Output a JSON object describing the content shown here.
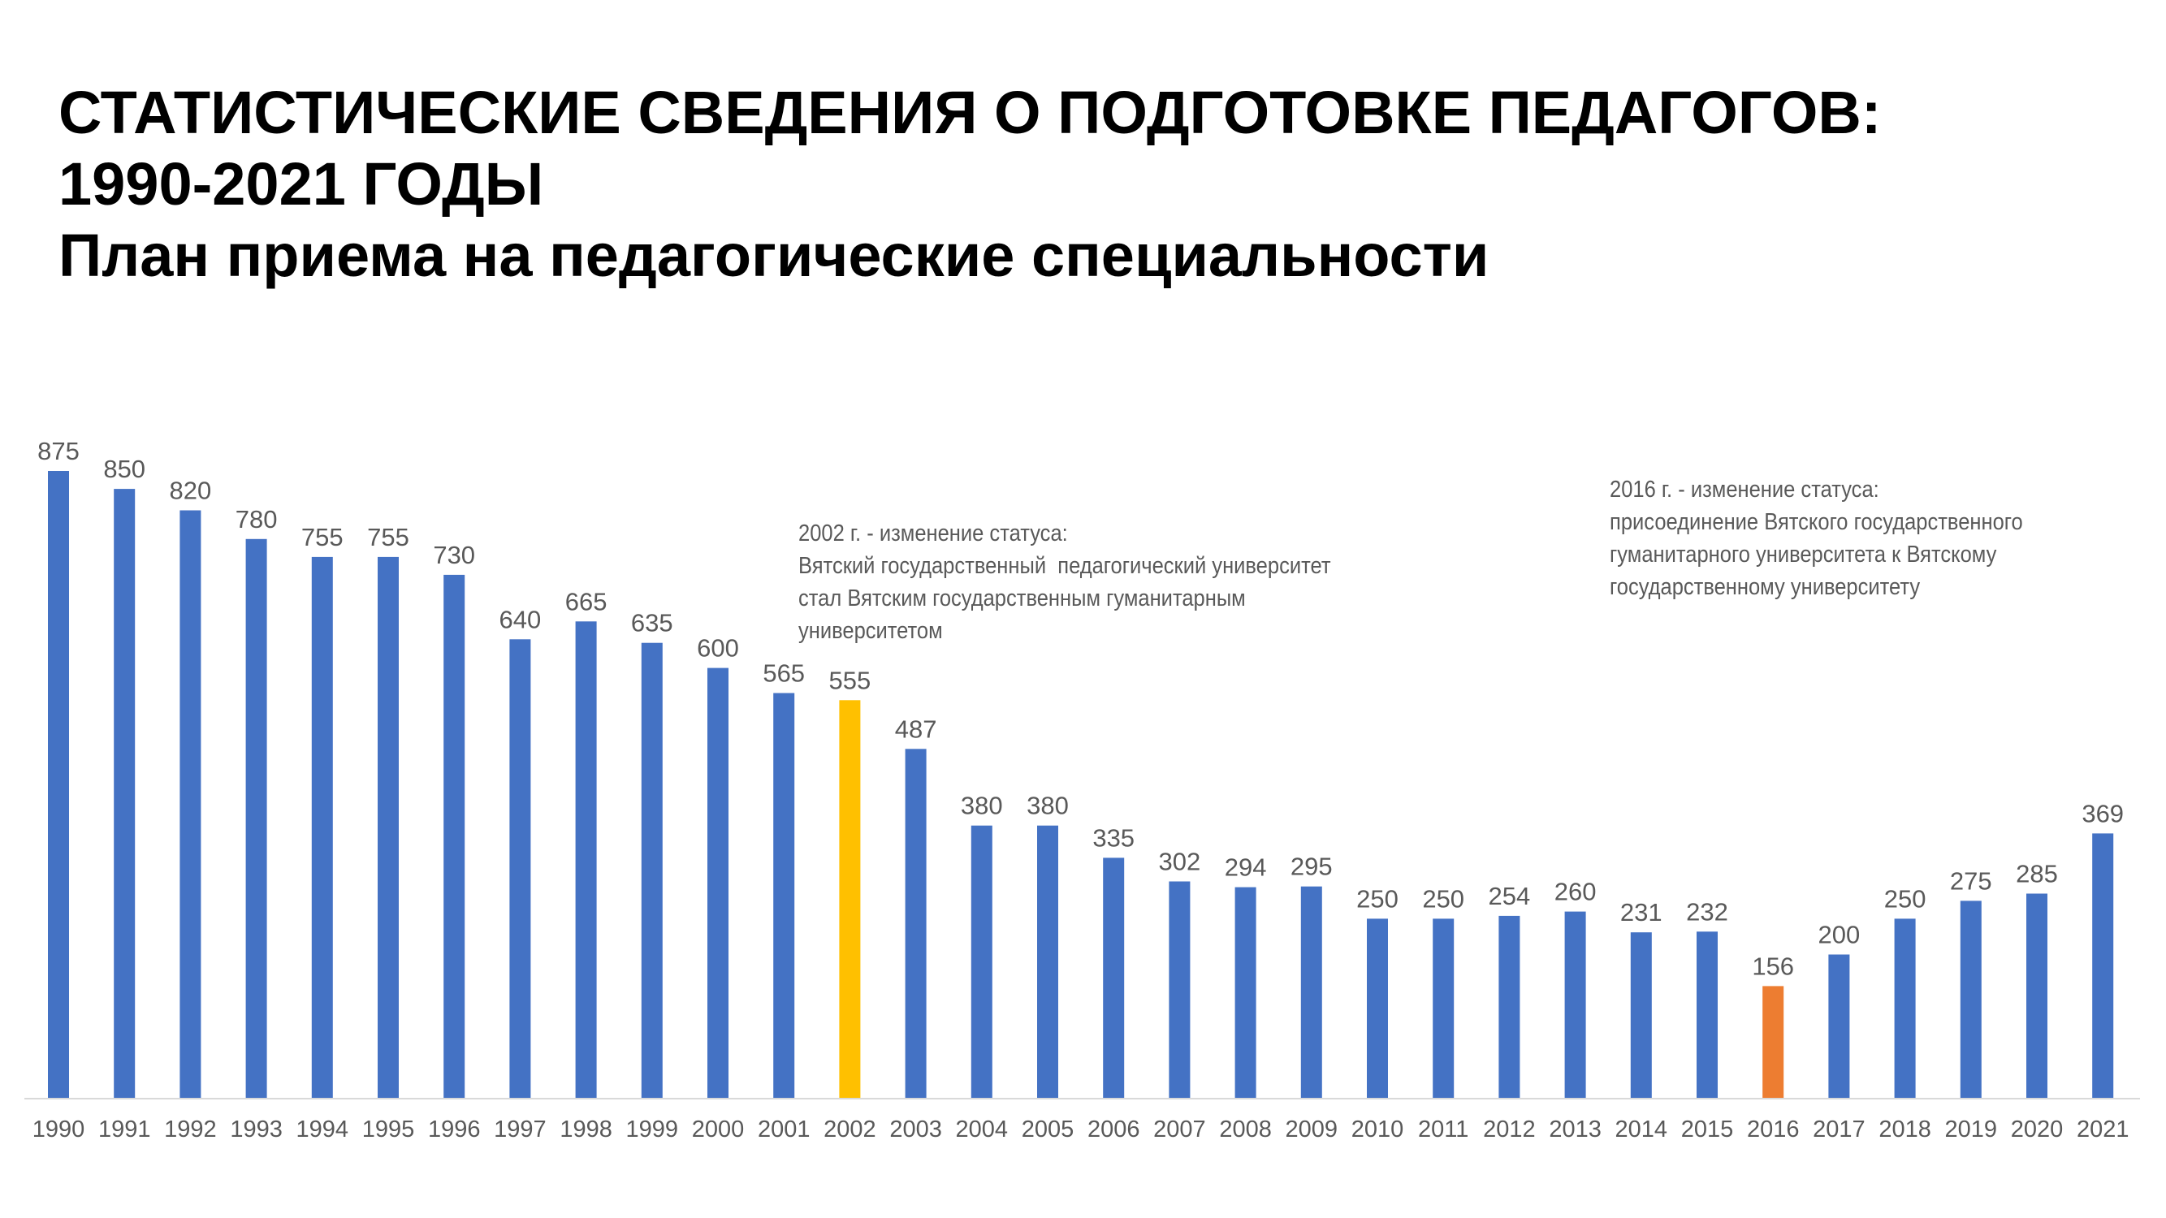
{
  "title": {
    "line1": "СТАТИСТИЧЕСКИЕ СВЕДЕНИЯ О ПОДГОТОВКЕ ПЕДАГОГОВ:",
    "line2": "1990-2021 ГОДЫ",
    "subtitle": "План приема на педагогические специальности"
  },
  "annotations": [
    {
      "lines": [
        "2002 г. - изменение статуса:",
        "Вятский государственный  педагогический университет",
        "стал Вятским государственным гуманитарным",
        "университетом"
      ]
    },
    {
      "lines": [
        "2016 г. - изменение статуса:",
        "присоединение Вятского государственного",
        "гуманитарного университета к Вятскому",
        "государственному университету"
      ]
    }
  ],
  "chart_data": {
    "type": "bar",
    "categories": [
      "1990",
      "1991",
      "1992",
      "1993",
      "1994",
      "1995",
      "1996",
      "1997",
      "1998",
      "1999",
      "2000",
      "2001",
      "2002",
      "2003",
      "2004",
      "2005",
      "2006",
      "2007",
      "2008",
      "2009",
      "2010",
      "2011",
      "2012",
      "2013",
      "2014",
      "2015",
      "2016",
      "2017",
      "2018",
      "2019",
      "2020",
      "2021"
    ],
    "values": [
      875,
      850,
      820,
      780,
      755,
      755,
      730,
      640,
      665,
      635,
      600,
      565,
      555,
      487,
      380,
      380,
      335,
      302,
      294,
      295,
      250,
      250,
      254,
      260,
      231,
      232,
      156,
      200,
      250,
      275,
      285,
      369
    ],
    "ylim": [
      0,
      875
    ],
    "data_labels": true,
    "grid": false,
    "legend": "none",
    "colors": {
      "default": "#4472C4",
      "highlight_2002": "#FFC000",
      "highlight_2016": "#ED7D31",
      "label_text": "#595959",
      "axis_line": "#D9D9D9"
    },
    "highlights": {
      "2002": "#FFC000",
      "2016": "#ED7D31"
    }
  }
}
